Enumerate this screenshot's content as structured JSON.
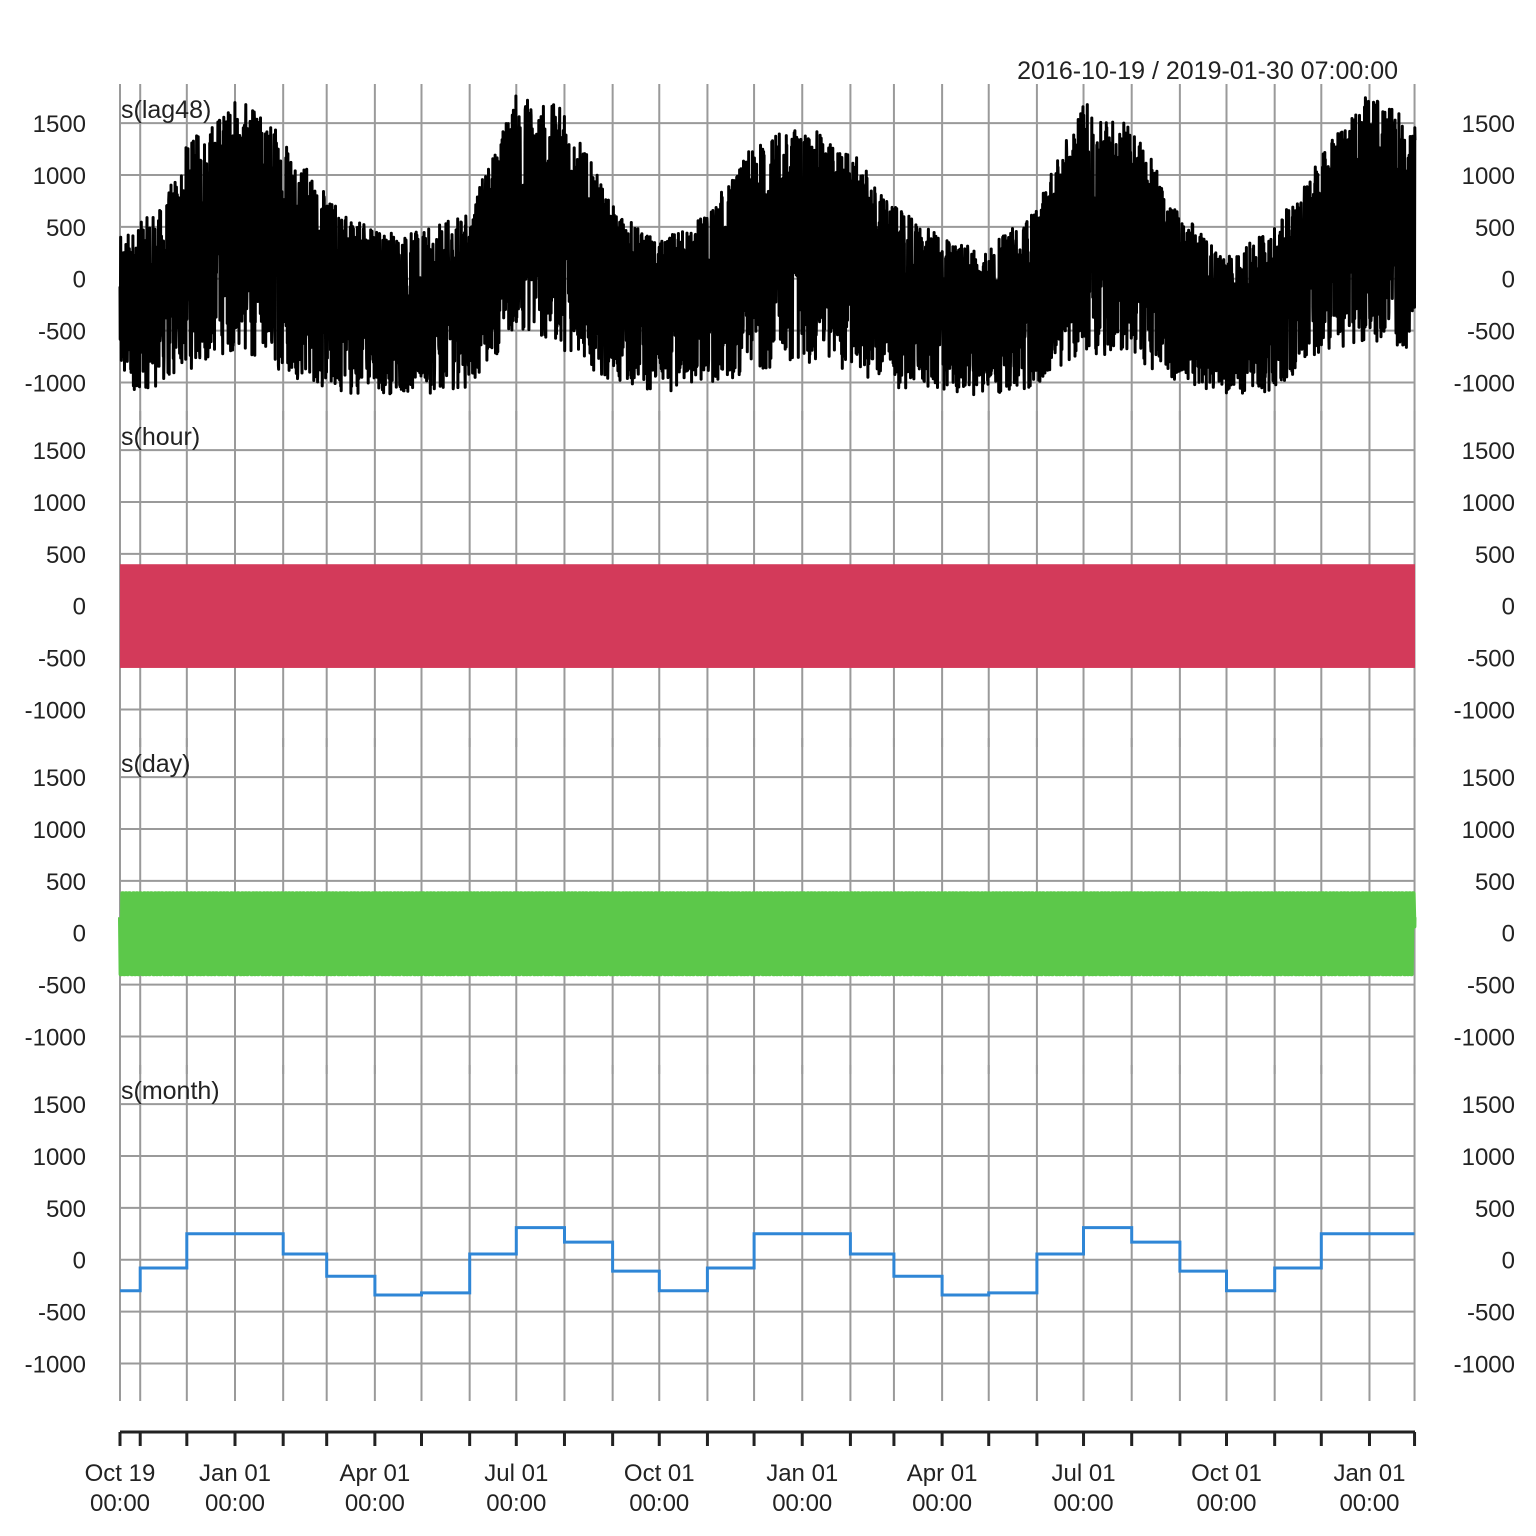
{
  "chart_data": {
    "type": "line",
    "date_range": "2016-10-19 / 2019-01-30 07:00:00",
    "x_range": [
      "2016-10-19 00:00",
      "2019-01-30 07:00"
    ],
    "x_ticks": [
      {
        "date": "2016-10-19",
        "label": [
          "Oct 19",
          "00:00"
        ]
      },
      {
        "date": "2016-11-01",
        "label": null
      },
      {
        "date": "2016-12-01",
        "label": null
      },
      {
        "date": "2017-01-01",
        "label": [
          "Jan 01",
          "00:00"
        ]
      },
      {
        "date": "2017-02-01",
        "label": null
      },
      {
        "date": "2017-03-01",
        "label": null
      },
      {
        "date": "2017-04-01",
        "label": [
          "Apr 01",
          "00:00"
        ]
      },
      {
        "date": "2017-05-01",
        "label": null
      },
      {
        "date": "2017-06-01",
        "label": null
      },
      {
        "date": "2017-07-01",
        "label": [
          "Jul 01",
          "00:00"
        ]
      },
      {
        "date": "2017-08-01",
        "label": null
      },
      {
        "date": "2017-09-01",
        "label": null
      },
      {
        "date": "2017-10-01",
        "label": [
          "Oct 01",
          "00:00"
        ]
      },
      {
        "date": "2017-11-01",
        "label": null
      },
      {
        "date": "2017-12-01",
        "label": null
      },
      {
        "date": "2018-01-01",
        "label": [
          "Jan 01",
          "00:00"
        ]
      },
      {
        "date": "2018-02-01",
        "label": null
      },
      {
        "date": "2018-03-01",
        "label": null
      },
      {
        "date": "2018-04-01",
        "label": [
          "Apr 01",
          "00:00"
        ]
      },
      {
        "date": "2018-05-01",
        "label": null
      },
      {
        "date": "2018-06-01",
        "label": null
      },
      {
        "date": "2018-07-01",
        "label": [
          "Jul 01",
          "00:00"
        ]
      },
      {
        "date": "2018-08-01",
        "label": null
      },
      {
        "date": "2018-09-01",
        "label": null
      },
      {
        "date": "2018-10-01",
        "label": [
          "Oct 01",
          "00:00"
        ]
      },
      {
        "date": "2018-11-01",
        "label": null
      },
      {
        "date": "2018-12-01",
        "label": null
      },
      {
        "date": "2019-01-01",
        "label": [
          "Jan 01",
          "00:00"
        ]
      },
      {
        "date": "2019-01-30",
        "label": null
      }
    ],
    "y_ticks": [
      1500,
      1000,
      500,
      0,
      -500,
      -1000
    ],
    "ylim": [
      -1150,
      1800
    ],
    "grid": true,
    "panels": [
      {
        "label": "s(lag48)",
        "color": "#000000",
        "kind": "noisy",
        "envelope_points": [
          {
            "date": "2016-10-19",
            "low": -1100,
            "high": 400
          },
          {
            "date": "2016-11-15",
            "low": -1050,
            "high": 700
          },
          {
            "date": "2016-12-01",
            "low": -900,
            "high": 1300
          },
          {
            "date": "2017-01-01",
            "low": -700,
            "high": 1750
          },
          {
            "date": "2017-02-01",
            "low": -900,
            "high": 1450
          },
          {
            "date": "2017-03-01",
            "low": -1100,
            "high": 800
          },
          {
            "date": "2017-04-01",
            "low": -1120,
            "high": 500
          },
          {
            "date": "2017-05-01",
            "low": -1120,
            "high": 450
          },
          {
            "date": "2017-06-01",
            "low": -1050,
            "high": 650
          },
          {
            "date": "2017-07-01",
            "low": -500,
            "high": 1800
          },
          {
            "date": "2017-08-01",
            "low": -700,
            "high": 1650
          },
          {
            "date": "2017-09-01",
            "low": -1000,
            "high": 700
          },
          {
            "date": "2017-10-01",
            "low": -1100,
            "high": 350
          },
          {
            "date": "2017-11-01",
            "low": -1050,
            "high": 650
          },
          {
            "date": "2017-12-01",
            "low": -900,
            "high": 1300
          },
          {
            "date": "2018-01-01",
            "low": -800,
            "high": 1500
          },
          {
            "date": "2018-02-01",
            "low": -900,
            "high": 1250
          },
          {
            "date": "2018-03-01",
            "low": -1050,
            "high": 700
          },
          {
            "date": "2018-04-01",
            "low": -1120,
            "high": 400
          },
          {
            "date": "2018-05-01",
            "low": -1120,
            "high": 300
          },
          {
            "date": "2018-06-01",
            "low": -1050,
            "high": 700
          },
          {
            "date": "2018-07-01",
            "low": -700,
            "high": 1700
          },
          {
            "date": "2018-08-01",
            "low": -800,
            "high": 1500
          },
          {
            "date": "2018-09-01",
            "low": -1000,
            "high": 650
          },
          {
            "date": "2018-10-01",
            "low": -1120,
            "high": 200
          },
          {
            "date": "2018-11-01",
            "low": -1100,
            "high": 500
          },
          {
            "date": "2018-12-01",
            "low": -700,
            "high": 1200
          },
          {
            "date": "2019-01-01",
            "low": -600,
            "high": 1800
          },
          {
            "date": "2019-01-30",
            "low": -700,
            "high": 1500
          }
        ]
      },
      {
        "label": "s(hour)",
        "color": "#d33a5a",
        "kind": "band",
        "band": {
          "low": -600,
          "high": 400
        }
      },
      {
        "label": "s(day)",
        "color": "#5cc84a",
        "kind": "weekly",
        "weekly": {
          "low": -400,
          "high": 380,
          "period_days": 7
        }
      },
      {
        "label": "s(month)",
        "color": "#2f86d6",
        "kind": "step",
        "steps": [
          {
            "start": "2016-10-19",
            "value": -300
          },
          {
            "start": "2016-11-01",
            "value": -80
          },
          {
            "start": "2016-12-01",
            "value": 250
          },
          {
            "start": "2017-02-01",
            "value": 55
          },
          {
            "start": "2017-03-01",
            "value": -160
          },
          {
            "start": "2017-04-01",
            "value": -340
          },
          {
            "start": "2017-05-01",
            "value": -320
          },
          {
            "start": "2017-06-01",
            "value": 55
          },
          {
            "start": "2017-07-01",
            "value": 310
          },
          {
            "start": "2017-08-01",
            "value": 170
          },
          {
            "start": "2017-09-01",
            "value": -110
          },
          {
            "start": "2017-10-01",
            "value": -300
          },
          {
            "start": "2017-11-01",
            "value": -80
          },
          {
            "start": "2017-12-01",
            "value": 250
          },
          {
            "start": "2018-02-01",
            "value": 55
          },
          {
            "start": "2018-03-01",
            "value": -160
          },
          {
            "start": "2018-04-01",
            "value": -340
          },
          {
            "start": "2018-05-01",
            "value": -320
          },
          {
            "start": "2018-06-01",
            "value": 55
          },
          {
            "start": "2018-07-01",
            "value": 310
          },
          {
            "start": "2018-08-01",
            "value": 170
          },
          {
            "start": "2018-09-01",
            "value": -110
          },
          {
            "start": "2018-10-01",
            "value": -300
          },
          {
            "start": "2018-11-01",
            "value": -80
          },
          {
            "start": "2018-12-01",
            "value": 250
          },
          {
            "start": "2019-01-30",
            "value": 250
          }
        ]
      }
    ]
  }
}
